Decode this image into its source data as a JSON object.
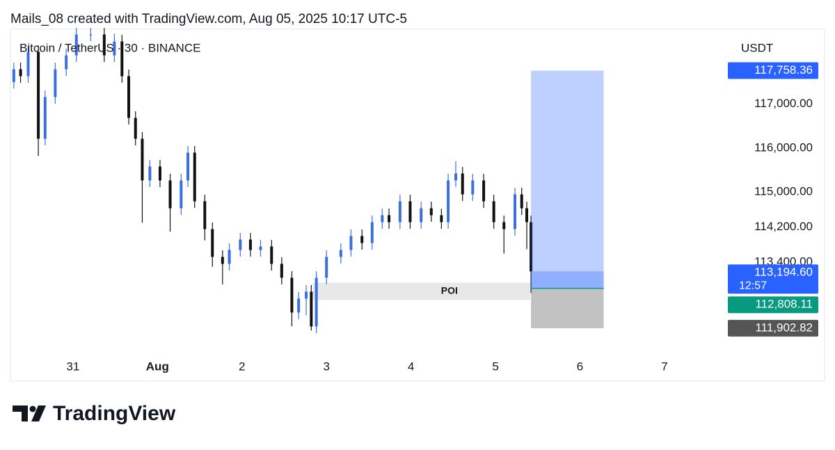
{
  "header": "Mails_08 created with TradingView.com, Aug 05, 2025 10:17 UTC-5",
  "brand": "TradingView",
  "chart_data": {
    "type": "candlestick",
    "title": "Bitcoin / TetherUS · 30 · BINANCE",
    "y_axis_label": "USDT",
    "up_color": "#3b6fe0",
    "down_color": "#111111",
    "x": [
      -0.7,
      -0.62,
      -0.53,
      -0.41,
      -0.33,
      -0.21,
      -0.08,
      0.04,
      0.21,
      0.37,
      0.49,
      0.58,
      0.66,
      0.74,
      0.82,
      0.91,
      1.03,
      1.15,
      1.28,
      1.36,
      1.44,
      1.56,
      1.65,
      1.77,
      1.85,
      1.98,
      2.1,
      2.22,
      2.35,
      2.47,
      2.59,
      2.67,
      2.76,
      2.82,
      2.88,
      3.0,
      3.17,
      3.29,
      3.42,
      3.54,
      3.66,
      3.74,
      3.87,
      3.99,
      4.12,
      4.24,
      4.36,
      4.44,
      4.53,
      4.61,
      4.73,
      4.86,
      4.98,
      5.1,
      5.23,
      5.31,
      5.37,
      5.42
    ],
    "open": [
      117500,
      117790,
      117632,
      118185,
      116210,
      117158,
      117790,
      118106,
      118580,
      118580,
      118106,
      118422,
      117632,
      116684,
      116210,
      115262,
      115578,
      115262,
      114630,
      115262,
      115894,
      114788,
      114156,
      113524,
      113366,
      113682,
      113919,
      113682,
      113761,
      113366,
      113050,
      112260,
      112576,
      112734,
      111944,
      113050,
      113524,
      113682,
      113998,
      113840,
      114314,
      114472,
      114314,
      114788,
      114314,
      114630,
      114472,
      114314,
      115262,
      115420,
      114946,
      115262,
      114788,
      114314,
      114156,
      114946,
      114630,
      114314
    ],
    "high": [
      117940,
      117940,
      118335,
      118335,
      117308,
      117940,
      118256,
      118730,
      118730,
      118730,
      118600,
      118572,
      117782,
      116834,
      116360,
      115728,
      115728,
      115412,
      115412,
      116044,
      116044,
      114938,
      114306,
      113674,
      113832,
      114069,
      114069,
      113911,
      113911,
      113516,
      113200,
      112726,
      112884,
      112884,
      113200,
      113674,
      113832,
      114148,
      114148,
      114464,
      114622,
      114622,
      114938,
      114938,
      114780,
      114780,
      114622,
      115412,
      115700,
      115570,
      115412,
      115412,
      114938,
      114464,
      115096,
      115096,
      114780,
      114464
    ],
    "low": [
      117350,
      117480,
      117480,
      115820,
      116060,
      117008,
      117640,
      117956,
      118430,
      117956,
      117956,
      117482,
      116534,
      116060,
      114300,
      115112,
      115112,
      114100,
      114480,
      115112,
      114638,
      113900,
      113300,
      112900,
      113216,
      113532,
      113532,
      113532,
      113216,
      112900,
      111950,
      112110,
      112200,
      111850,
      111794,
      112900,
      113374,
      113532,
      113690,
      113690,
      114164,
      114164,
      114164,
      114164,
      114164,
      114322,
      114164,
      114164,
      115112,
      114796,
      114796,
      114638,
      114164,
      113600,
      114006,
      114480,
      113700,
      112700
    ],
    "close": [
      117790,
      117632,
      118185,
      116210,
      117158,
      117790,
      118106,
      118580,
      118580,
      118106,
      118422,
      117632,
      116684,
      116210,
      115262,
      115578,
      115262,
      114630,
      115262,
      115894,
      114788,
      114156,
      113524,
      113366,
      113682,
      113919,
      113682,
      113761,
      113366,
      113050,
      112260,
      112576,
      112734,
      111944,
      113050,
      113524,
      113682,
      113998,
      113840,
      114314,
      114472,
      114314,
      114788,
      114314,
      114630,
      114472,
      114314,
      115262,
      115420,
      114946,
      115262,
      114788,
      114314,
      114156,
      114946,
      114630,
      114314,
      113194.6
    ],
    "xlim": [
      -0.74,
      7.7
    ],
    "xticks": [
      {
        "value": 0,
        "label": "31"
      },
      {
        "value": 1,
        "label": "Aug"
      },
      2,
      3,
      4,
      5,
      6,
      7
    ],
    "ylim": [
      110700,
      118700
    ],
    "yticks": [
      {
        "value": 117000,
        "label": "117,000.00"
      },
      {
        "value": 116000,
        "label": "116,000.00"
      },
      {
        "value": 115000,
        "label": "115,000.00"
      },
      {
        "value": 114200,
        "label": "114,200.00"
      },
      {
        "value": 113400,
        "label": "113,400.00"
      }
    ],
    "price_tags": [
      {
        "value": 117758.36,
        "label": "117,758.36",
        "color": "#2962ff"
      },
      {
        "value": 113194.6,
        "label": "113,194.60",
        "countdown": "12:57",
        "color": "#2962ff"
      },
      {
        "value": 112808.11,
        "label": "112,808.11",
        "color": "#089981"
      },
      {
        "value": 111902.82,
        "label": "111,902.82",
        "color": "#555555"
      }
    ],
    "position": {
      "target": 117758.36,
      "entry": 112808.11,
      "stop": 111902.82,
      "x_start": 5.42,
      "x_end": 6.28
    },
    "poi": {
      "label": "POI",
      "top": 112940,
      "bottom": 112545,
      "x_start": 2.84,
      "x_end": 5.41
    }
  }
}
